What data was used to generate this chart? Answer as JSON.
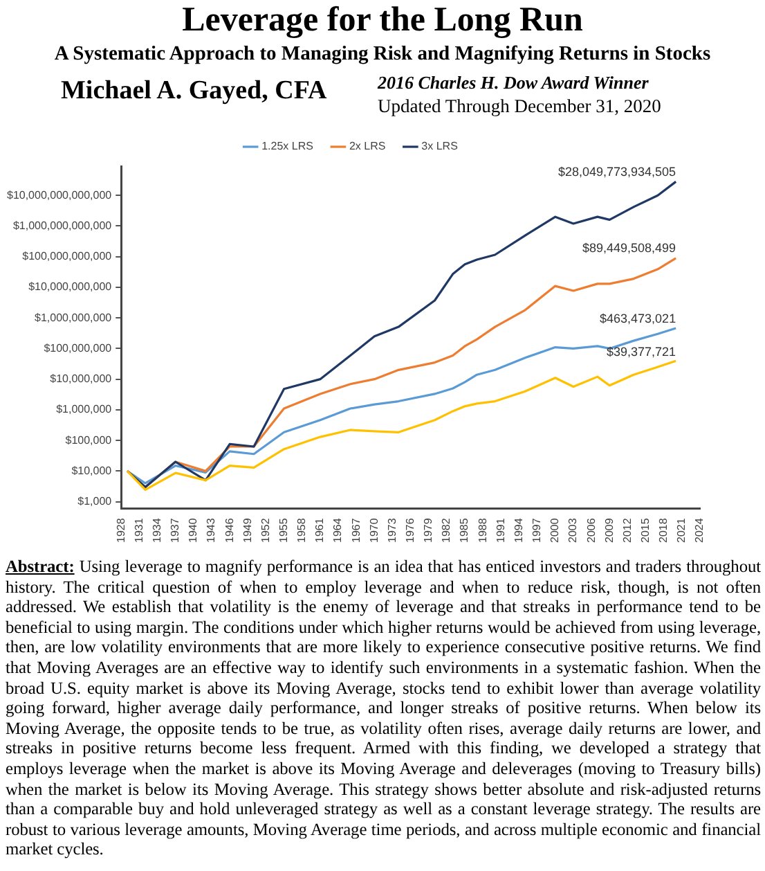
{
  "chart_data": {
    "type": "line",
    "title": "Leverage for the Long Run",
    "subtitle": "A Systematic Approach to Managing Risk and Magnifying Returns in Stocks",
    "annotations": [
      "Michael A. Gayed, CFA",
      "2016 Charles H. Dow Award Winner",
      "Updated Through December 31, 2020",
      "Abstract: Using leverage to magnify performance is an idea that has enticed investors and traders throughout history. The critical question of when to employ leverage and when to reduce risk, though, is not often addressed. We establish that volatility is the enemy of leverage and that streaks in performance tend to be beneficial to using margin. The conditions under which higher returns would be achieved from using leverage, then, are low volatility environments that are more likely to experience consecutive positive returns. We find that Moving Averages are an effective way to identify such environments in a systematic fashion. When the broad U.S. equity market is above its Moving Average, stocks tend to exhibit lower than average volatility going forward, higher average daily performance, and longer streaks of positive returns. When below its Moving Average, the opposite tends to be true, as volatility often rises, average daily returns are lower, and streaks in positive returns become less frequent. Armed with this finding, we developed a strategy that employs leverage when the market is above its Moving Average and deleverages (moving to Treasury bills) when the market is below its Moving Average. This strategy shows better absolute and risk-adjusted returns than a comparable buy and hold unleveraged strategy as well as a constant leverage strategy. The results are robust to various leverage amounts, Moving Average time periods, and across multiple economic and financial market cycles."
    ],
    "x": [
      1929,
      1932,
      1937,
      1942,
      1946,
      1950,
      1955,
      1961,
      1966,
      1970,
      1974,
      1980,
      1983,
      1985,
      1987,
      1990,
      1995,
      2000,
      2003,
      2007,
      2009,
      2013,
      2017,
      2020
    ],
    "series": [
      {
        "name": "1.25x LRS",
        "color": "#5b9bd5",
        "values": [
          10000,
          4000,
          15000,
          9000,
          44000,
          36000,
          185000,
          460000,
          1100000,
          1500000,
          1900000,
          3300000,
          5000000,
          8000000,
          14000000,
          20000000,
          50000000,
          110000000,
          100000000,
          120000000,
          100000000,
          180000000,
          300000000,
          463473021
        ],
        "value_labels": [
          null,
          null,
          null,
          null,
          null,
          null,
          null,
          null,
          null,
          null,
          null,
          null,
          null,
          null,
          null,
          null,
          null,
          null,
          null,
          null,
          null,
          null,
          null,
          "$463,473,021"
        ]
      },
      {
        "name": "2x LRS",
        "color": "#ed7d31",
        "values": [
          10000,
          3000,
          20000,
          10000,
          63000,
          63000,
          1100000,
          3300000,
          6900000,
          10000000,
          20000000,
          35000000,
          59000000,
          120000000,
          200000000,
          510000000,
          1800000000,
          11000000000,
          7700000000,
          13000000000,
          13000000000,
          19000000000,
          39000000000,
          89449508499
        ],
        "value_labels": [
          null,
          null,
          null,
          null,
          null,
          null,
          null,
          null,
          null,
          null,
          null,
          null,
          null,
          null,
          null,
          null,
          null,
          null,
          null,
          null,
          null,
          null,
          null,
          "$89,449,508,499"
        ]
      },
      {
        "name": "3x LRS",
        "color": "#203864",
        "values": [
          10000,
          3000,
          20000,
          5000,
          76000,
          63000,
          4800000,
          10000000,
          59000000,
          250000000,
          510000000,
          3700000000,
          27000000000,
          56000000000,
          80000000000,
          115000000000,
          490000000000,
          2000000000000,
          1200000000000,
          2000000000000,
          1600000000000,
          4200000000000,
          10000000000000,
          28049773934505
        ],
        "value_labels": [
          null,
          null,
          null,
          null,
          null,
          null,
          null,
          null,
          null,
          null,
          null,
          null,
          null,
          null,
          null,
          null,
          null,
          null,
          null,
          null,
          null,
          null,
          null,
          "$28,049,773,934,505"
        ]
      },
      {
        "color": "#ffc000",
        "values": [
          10000,
          2460,
          8700,
          5000,
          15000,
          13000,
          52000,
          130000,
          220000,
          200000,
          185000,
          460000,
          900000,
          1300000,
          1600000,
          1900000,
          4000000,
          11000000,
          5700000,
          12000000,
          6200000,
          14000000,
          25000000,
          39377721
        ],
        "value_labels": [
          null,
          null,
          null,
          null,
          null,
          null,
          null,
          null,
          null,
          null,
          null,
          null,
          null,
          null,
          null,
          null,
          null,
          null,
          null,
          null,
          null,
          null,
          null,
          "$39,377,721"
        ]
      }
    ],
    "xlim": [
      1928,
      2024
    ],
    "xticks": [
      1928,
      1931,
      1934,
      1937,
      1940,
      1943,
      1946,
      1949,
      1952,
      1955,
      1958,
      1961,
      1964,
      1967,
      1970,
      1973,
      1976,
      1979,
      1982,
      1985,
      1988,
      1991,
      1994,
      1997,
      2000,
      2003,
      2006,
      2009,
      2012,
      2015,
      2018,
      2021,
      2024
    ],
    "ylim": [
      600,
      90000000000000
    ],
    "yticks": [
      {
        "value": 1000,
        "label": "$1,000"
      },
      {
        "value": 10000,
        "label": "$10,000"
      },
      {
        "value": 100000,
        "label": "$100,000"
      },
      {
        "value": 1000000,
        "label": "$1,000,000"
      },
      {
        "value": 10000000,
        "label": "$10,000,000"
      },
      {
        "value": 100000000,
        "label": "$100,000,000"
      },
      {
        "value": 1000000000,
        "label": "$1,000,000,000"
      },
      {
        "value": 10000000000,
        "label": "$10,000,000,000"
      },
      {
        "value": 100000000000,
        "label": "$100,000,000,000"
      },
      {
        "value": 1000000000000,
        "label": "$1,000,000,000,000"
      },
      {
        "value": 10000000000000,
        "label": "$10,000,000,000,000"
      }
    ],
    "log": "y",
    "grid": false,
    "legend": "top",
    "marker": "none",
    "line_style": "solid"
  }
}
